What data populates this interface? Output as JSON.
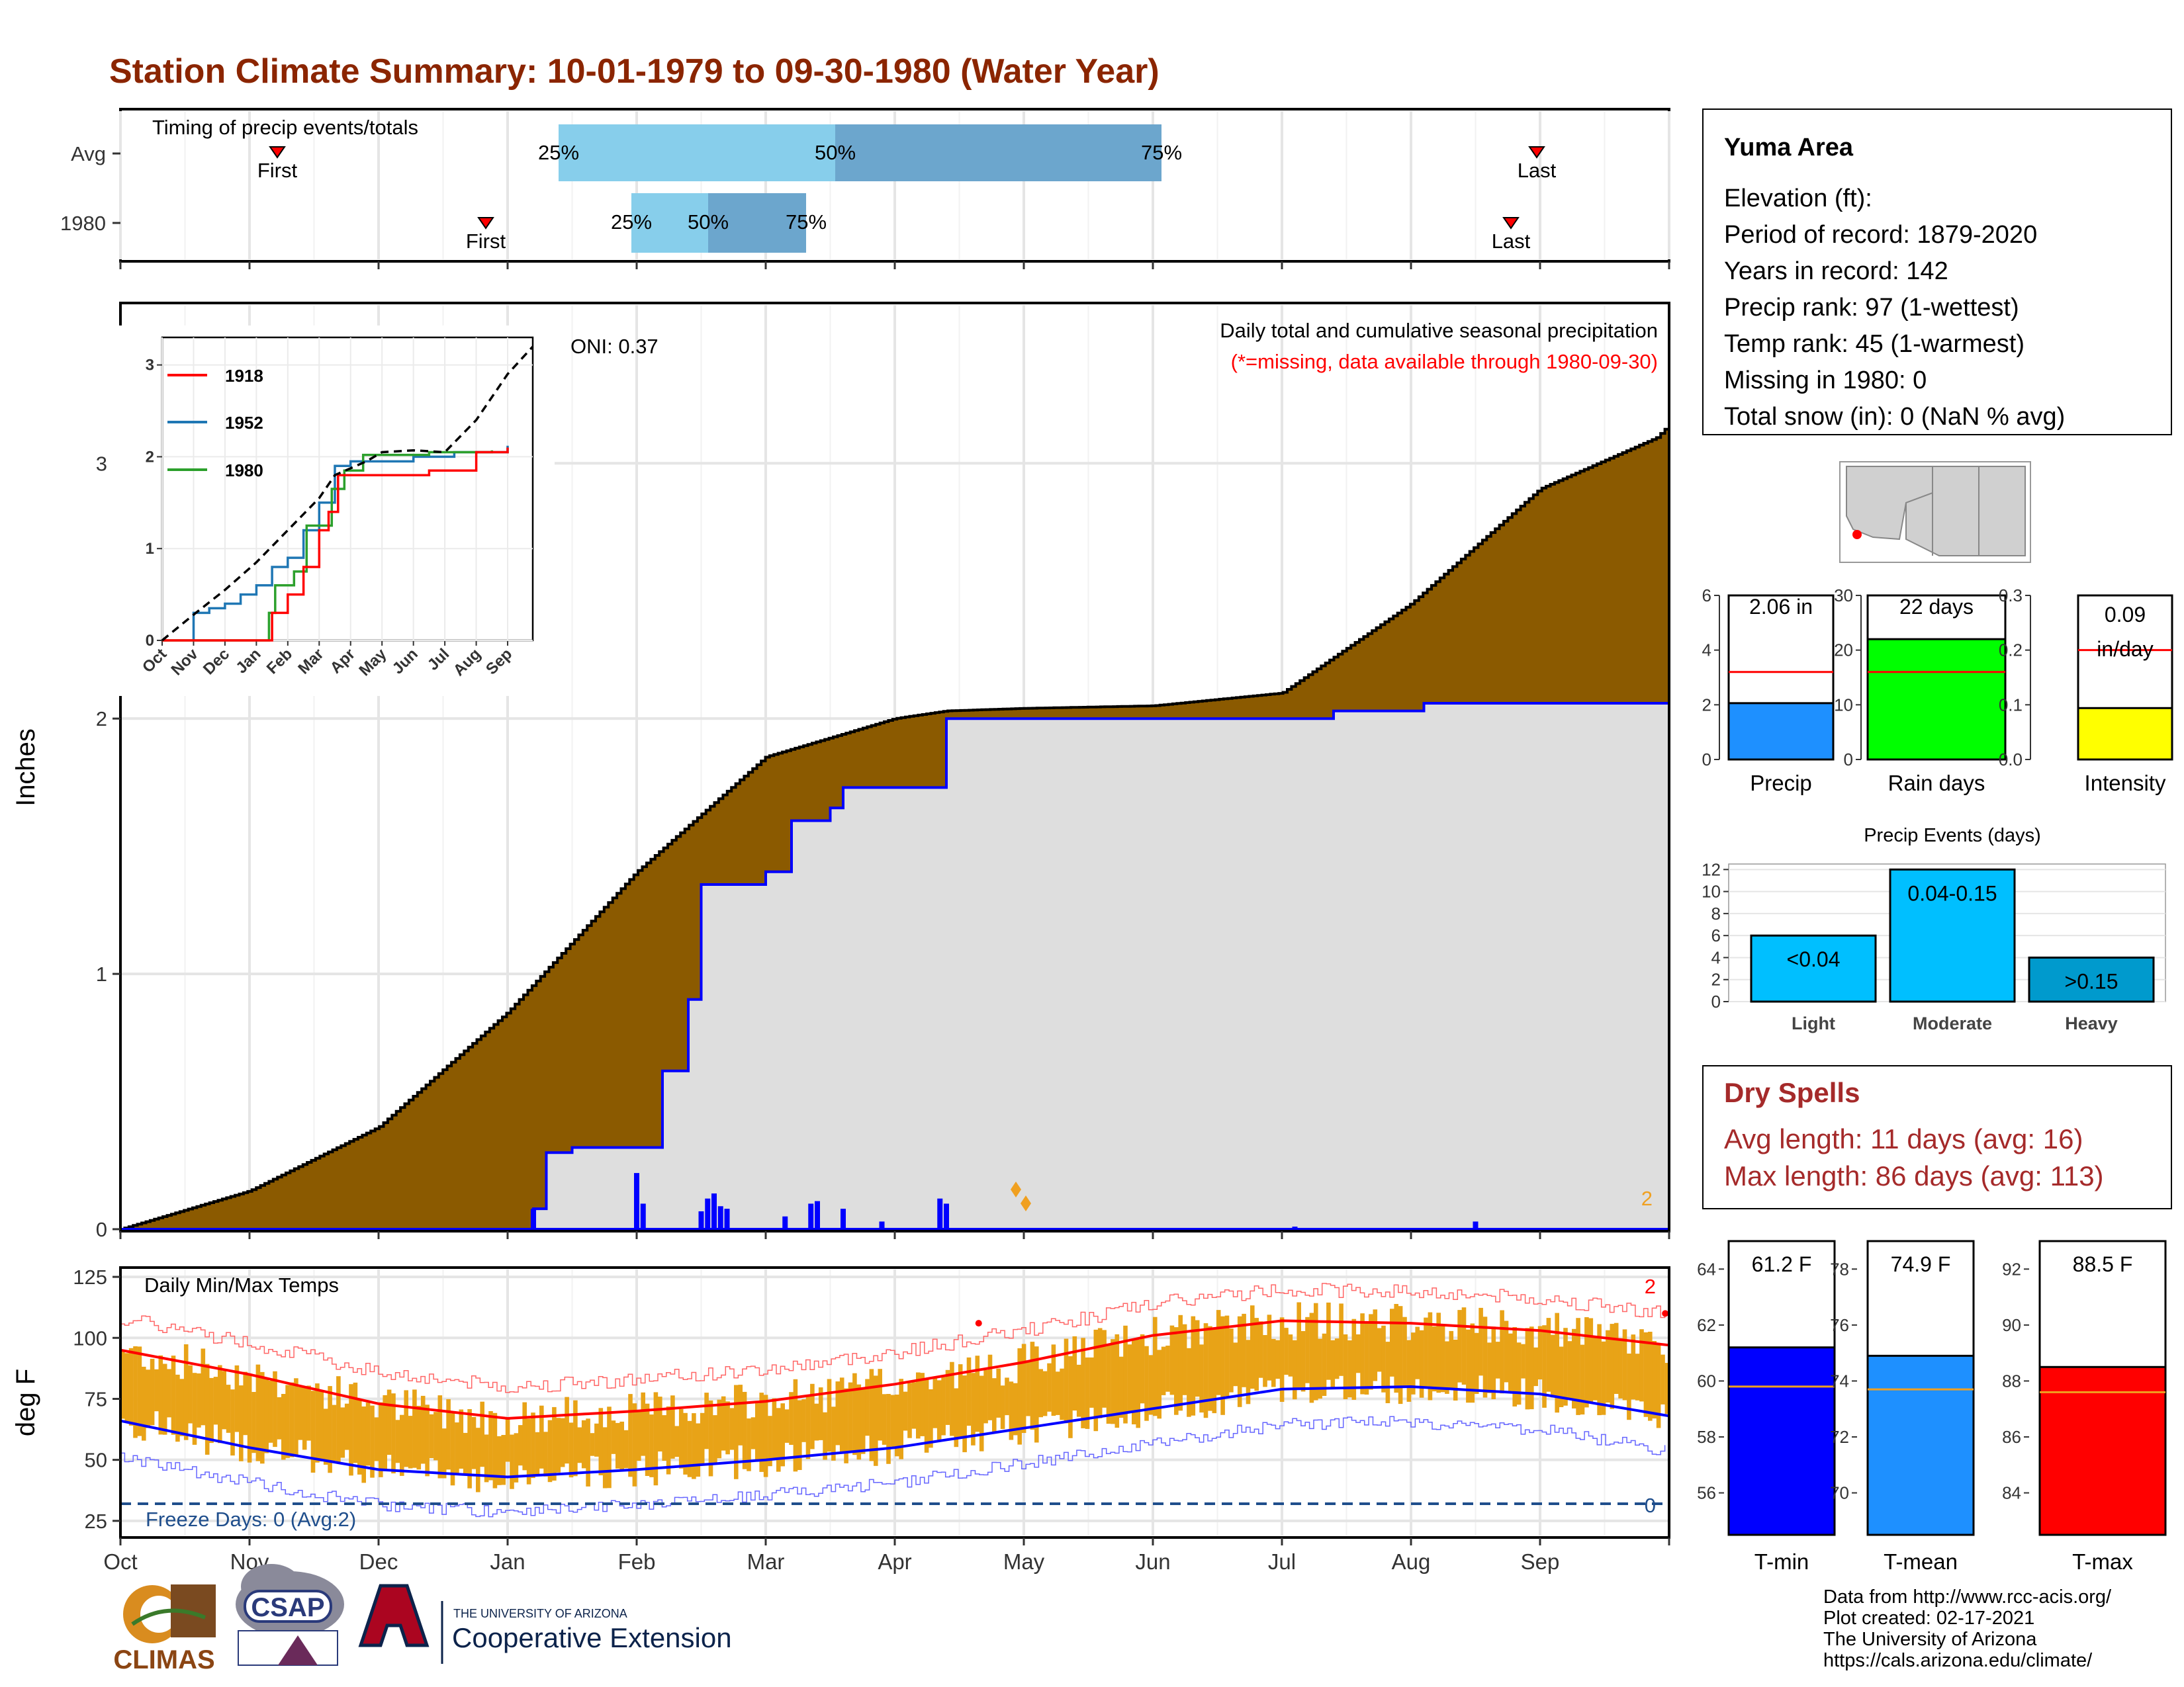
{
  "title": "Station Climate Summary: 10-01-1979 to 09-30-1980 (Water Year)",
  "colors": {
    "title": "#8B2500",
    "brown": "#8B5A00",
    "gray_fill": "#DEDEDE",
    "blue_line": "#0000FF",
    "red": "#FF0000",
    "orange": "#E8A317",
    "dryspell": "#A52A2A",
    "light_blue": "#87CEEB",
    "mid_blue": "#6CA6CD",
    "freeze": "#1F4E8C"
  },
  "timing": {
    "label": "Timing of precip events/totals",
    "rows": [
      "Avg",
      "1980"
    ],
    "first_label": "First",
    "last_label": "Last",
    "p25": "25%",
    "p50": "50%",
    "p75": "75%"
  },
  "months": [
    "Oct",
    "Nov",
    "Dec",
    "Jan",
    "Feb",
    "Mar",
    "Apr",
    "May",
    "Jun",
    "Jul",
    "Aug",
    "Sep"
  ],
  "precip_panel": {
    "ylabel": "Inches",
    "yticks": [
      "0",
      "1",
      "2",
      "3"
    ],
    "caption": "Daily total and cumulative seasonal precipitation",
    "missing_note": "(*=missing, data available through 1980-09-30)",
    "oni": "ONI: 0.37",
    "corner_count": "2"
  },
  "inset": {
    "legend": [
      "1918",
      "1952",
      "1980"
    ],
    "yticks": [
      "0",
      "1",
      "2",
      "3"
    ],
    "xticks": [
      "Oct",
      "Nov",
      "Dec",
      "Jan",
      "Feb",
      "Mar",
      "Apr",
      "May",
      "Jun",
      "Jul",
      "Aug",
      "Sep"
    ]
  },
  "temp_panel": {
    "ylabel": "deg F",
    "title": "Daily Min/Max Temps",
    "yticks": [
      "25",
      "50",
      "75",
      "100",
      "125"
    ],
    "freeze": "Freeze Days: 0 (Avg:2)",
    "count_top": "2",
    "count_bottom": "0"
  },
  "station": {
    "name": "Yuma Area",
    "lines": [
      "Elevation (ft):",
      "Period of record: 1879-2020",
      "Years in record: 142",
      "Precip rank: 97 (1-wettest)",
      "Temp rank: 45 (1-warmest)",
      "Missing in 1980: 0",
      "Total snow (in): 0 (NaN % avg)"
    ]
  },
  "mini_bars": [
    {
      "label": "Precip",
      "value_text": "2.06 in",
      "value": 2.06,
      "avg": 3.2,
      "ymax": 6,
      "ticks": [
        "0",
        "2",
        "4",
        "6"
      ],
      "color": "#1E90FF"
    },
    {
      "label": "Rain days",
      "value_text": "22 days",
      "value": 22,
      "avg": 16,
      "ymax": 30,
      "ticks": [
        "0",
        "10",
        "20",
        "30"
      ],
      "color": "#00FF00"
    },
    {
      "label": "Intensity",
      "value_text": "0.09",
      "value_text2": "in/day",
      "value": 0.094,
      "avg": 0.2,
      "ymax": 0.3,
      "ticks": [
        "0.0",
        "0.1",
        "0.2",
        "0.3"
      ],
      "color": "#FFFF00"
    }
  ],
  "precip_events": {
    "title": "Precip Events (days)",
    "categories": [
      "Light",
      "Moderate",
      "Heavy"
    ],
    "labels": [
      "<0.04",
      "0.04-0.15",
      ">0.15"
    ],
    "values": [
      6,
      12,
      4
    ],
    "colors": [
      "#00BFFF",
      "#00BFFF",
      "#009ACD"
    ],
    "yticks": [
      "0",
      "2",
      "4",
      "6",
      "8",
      "10",
      "12"
    ]
  },
  "dry_spells": {
    "title": "Dry Spells",
    "avg": "Avg length: 11 days (avg: 16)",
    "max": "Max length: 86 days (avg: 113)"
  },
  "temp_bars": [
    {
      "label": "T-min",
      "value_text": "61.2 F",
      "value": 61.2,
      "avg": 59.8,
      "ymin": 54.5,
      "ymax": 65,
      "ticks": [
        "56",
        "58",
        "60",
        "62",
        "64"
      ],
      "tickvals": [
        56,
        58,
        60,
        62,
        64
      ],
      "color": "#0000FF"
    },
    {
      "label": "T-mean",
      "value_text": "74.9 F",
      "value": 74.9,
      "avg": 73.7,
      "ymin": 68.5,
      "ymax": 79,
      "ticks": [
        "70",
        "72",
        "74",
        "76",
        "78"
      ],
      "tickvals": [
        70,
        72,
        74,
        76,
        78
      ],
      "color": "#1E90FF"
    },
    {
      "label": "T-max",
      "value_text": "88.5 F",
      "value": 88.5,
      "avg": 87.6,
      "ymin": 82.5,
      "ymax": 93,
      "ticks": [
        "84",
        "86",
        "88",
        "90",
        "92"
      ],
      "tickvals": [
        84,
        86,
        88,
        90,
        92
      ],
      "color": "#FF0000"
    }
  ],
  "footer": [
    "Data from http://www.rcc-acis.org/",
    "Plot created: 02-17-2021",
    "The University of Arizona",
    "https://cals.arizona.edu/climate/"
  ],
  "logos": {
    "climas": "CLIMAS",
    "csap": "CSAP",
    "ua_small": "THE UNIVERSITY OF ARIZONA",
    "ua_big": "Cooperative Extension"
  },
  "chart_data": [
    {
      "type": "area",
      "title": "Daily total and cumulative seasonal precipitation",
      "ylabel": "Inches",
      "ylim": [
        0,
        3.5
      ],
      "series": [
        {
          "name": "Avg",
          "x_month": [
            0,
            1,
            2,
            3,
            4,
            5,
            6,
            6.4,
            7,
            8,
            9,
            10,
            11,
            11.9,
            12
          ],
          "values": [
            0,
            0.15,
            0.4,
            0.85,
            1.4,
            1.85,
            2.0,
            2.03,
            2.04,
            2.05,
            2.1,
            2.45,
            2.9,
            3.1,
            3.15
          ]
        },
        {
          "name": "1980",
          "x_month": [
            0,
            2.7,
            3.2,
            3.3,
            3.5,
            4.1,
            4.2,
            4.4,
            4.5,
            5.0,
            5.2,
            5.5,
            5.6,
            6.2,
            6.4,
            6.8,
            9.2,
            9.4,
            10.1,
            12
          ],
          "values": [
            0,
            0,
            0.08,
            0.3,
            0.32,
            0.32,
            0.62,
            0.9,
            1.35,
            1.4,
            1.6,
            1.65,
            1.73,
            1.73,
            2.0,
            2.0,
            2.0,
            2.03,
            2.06,
            2.06
          ]
        }
      ],
      "daily_bars": {
        "x_month": [
          3.2,
          4.0,
          4.05,
          4.5,
          4.55,
          4.6,
          4.65,
          4.7,
          5.15,
          5.35,
          5.4,
          5.6,
          5.9,
          6.35,
          6.4,
          9.1,
          10.5
        ],
        "values": [
          0.08,
          0.22,
          0.1,
          0.07,
          0.12,
          0.14,
          0.09,
          0.08,
          0.05,
          0.1,
          0.11,
          0.08,
          0.03,
          0.12,
          0.1,
          0.01,
          0.03
        ]
      }
    },
    {
      "type": "line",
      "title": "Daily Min/Max Temps",
      "ylabel": "deg F",
      "ylim": [
        20,
        128
      ],
      "series": [
        {
          "name": "Avg max",
          "x_month": [
            0,
            1,
            2,
            3,
            4,
            5,
            6,
            7,
            8,
            9,
            10,
            11,
            12
          ],
          "values": [
            95,
            85,
            73,
            67,
            70,
            74,
            81,
            90,
            101,
            107,
            106,
            103,
            97
          ]
        },
        {
          "name": "Avg min",
          "x_month": [
            0,
            1,
            2,
            3,
            4,
            5,
            6,
            7,
            8,
            9,
            10,
            11,
            12
          ],
          "values": [
            66,
            55,
            46,
            43,
            46,
            50,
            55,
            63,
            71,
            79,
            80,
            77,
            68
          ]
        }
      ]
    }
  ]
}
